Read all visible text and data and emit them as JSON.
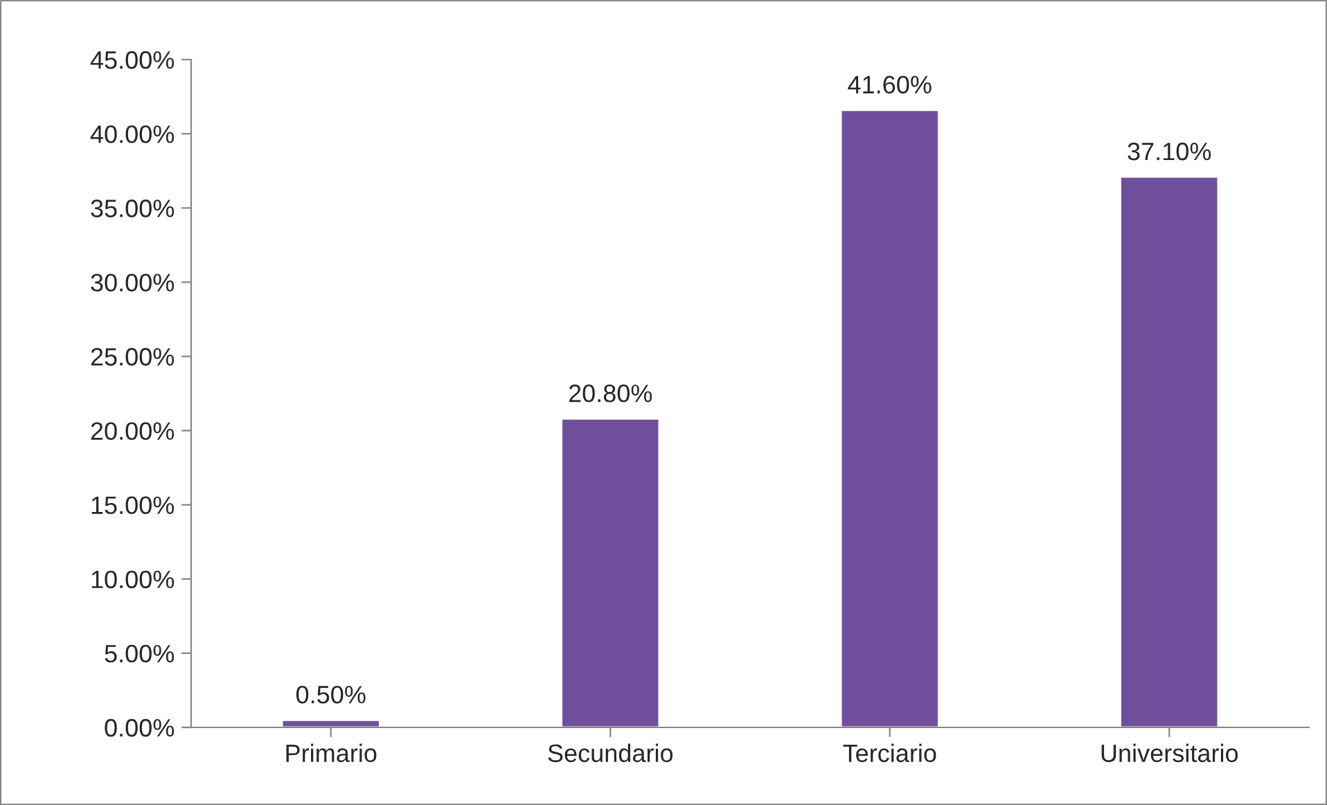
{
  "chart_data": {
    "type": "bar",
    "categories": [
      "Primario",
      "Secundario",
      "Terciario",
      "Universitario"
    ],
    "values": [
      0.5,
      20.8,
      41.6,
      37.1
    ],
    "value_labels": [
      "0.50%",
      "20.80%",
      "41.60%",
      "37.10%"
    ],
    "color": "#6f4f9c",
    "ylim": [
      0,
      45
    ],
    "yticks": [
      {
        "value": 0,
        "label": "0.00%"
      },
      {
        "value": 5,
        "label": "5.00%"
      },
      {
        "value": 10,
        "label": "10.00%"
      },
      {
        "value": 15,
        "label": "15.00%"
      },
      {
        "value": 20,
        "label": "20.00%"
      },
      {
        "value": 25,
        "label": "25.00%"
      },
      {
        "value": 30,
        "label": "30.00%"
      },
      {
        "value": 35,
        "label": "35.00%"
      },
      {
        "value": 40,
        "label": "40.00%"
      },
      {
        "value": 45,
        "label": "45.00%"
      }
    ],
    "grid": false,
    "legend": false
  }
}
